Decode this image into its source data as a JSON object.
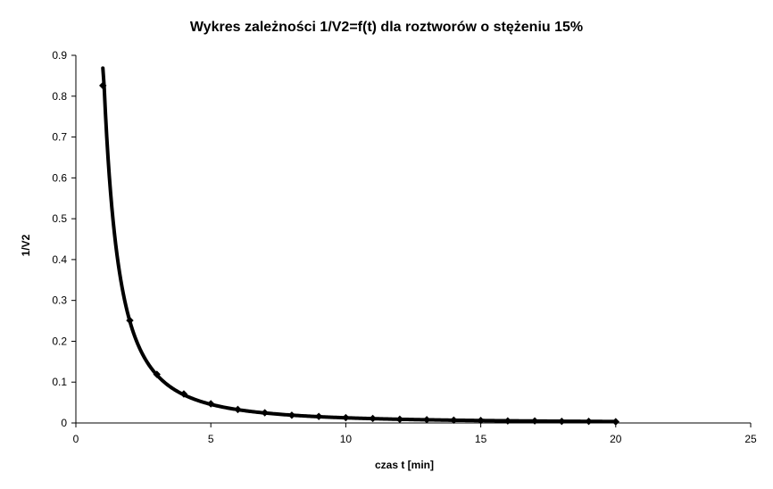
{
  "chart_data": {
    "type": "line",
    "title": "Wykres zależności 1/V2=f(t) dla roztworów o stężeniu 15%",
    "xlabel": "czas t [min]",
    "ylabel": "1/V2",
    "xlim": [
      0,
      25
    ],
    "ylim": [
      0,
      0.9
    ],
    "xticks": [
      0,
      5,
      10,
      15,
      20,
      25
    ],
    "yticks": [
      0,
      0.1,
      0.2,
      0.3,
      0.4,
      0.5,
      0.6,
      0.7,
      0.8,
      0.9
    ],
    "ytick_labels": [
      "0",
      "0.1",
      "0.2",
      "0.3",
      "0.4",
      "0.5",
      "0.6",
      "0.7",
      "0.8",
      "0.9"
    ],
    "grid": false,
    "legend": "none",
    "series": [
      {
        "color": "#000000",
        "marker": "diamond",
        "x": [
          1,
          2,
          3,
          4,
          5,
          6,
          7,
          8,
          9,
          10,
          11,
          12,
          13,
          14,
          15,
          16,
          17,
          18,
          19,
          20
        ],
        "y": [
          0.826,
          0.251,
          0.119,
          0.071,
          0.047,
          0.033,
          0.025,
          0.019,
          0.016,
          0.013,
          0.011,
          0.009,
          0.008,
          0.007,
          0.006,
          0.005,
          0.005,
          0.004,
          0.004,
          0.003
        ]
      }
    ]
  }
}
